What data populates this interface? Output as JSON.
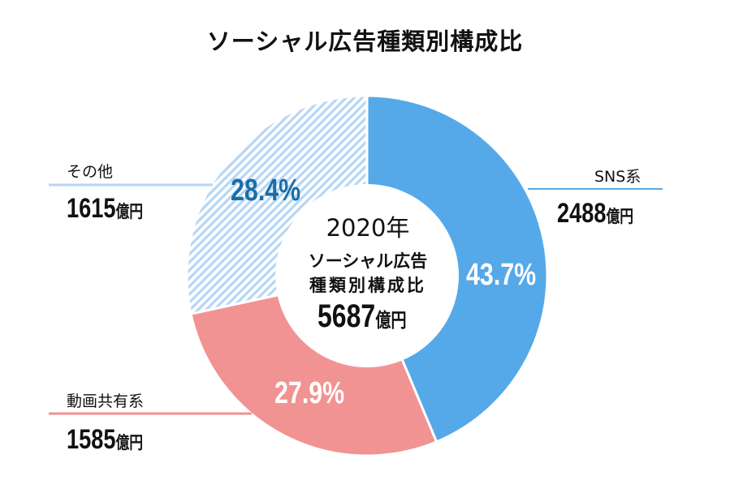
{
  "chart_data": {
    "type": "pie",
    "variant": "donut",
    "title": "ソーシャル広告種類別構成比",
    "center": {
      "year": "2020年",
      "line1": "ソーシャル広告",
      "line2": "種類別構成比",
      "total": "5687",
      "unit": "億円"
    },
    "slices": [
      {
        "name": "SNS系",
        "percent": 43.7,
        "percent_label": "43.7%",
        "amount": "2488",
        "unit": "億円",
        "color": "#55A9E8",
        "pattern": "solid"
      },
      {
        "name": "動画共有系",
        "percent": 27.9,
        "percent_label": "27.9%",
        "amount": "1585",
        "unit": "億円",
        "color": "#F19392",
        "pattern": "solid"
      },
      {
        "name": "その他",
        "percent": 28.4,
        "percent_label": "28.4%",
        "amount": "1615",
        "unit": "億円",
        "color": "#B5D6F4",
        "pattern": "hatched",
        "label_color": "#1A6EA8"
      }
    ]
  }
}
